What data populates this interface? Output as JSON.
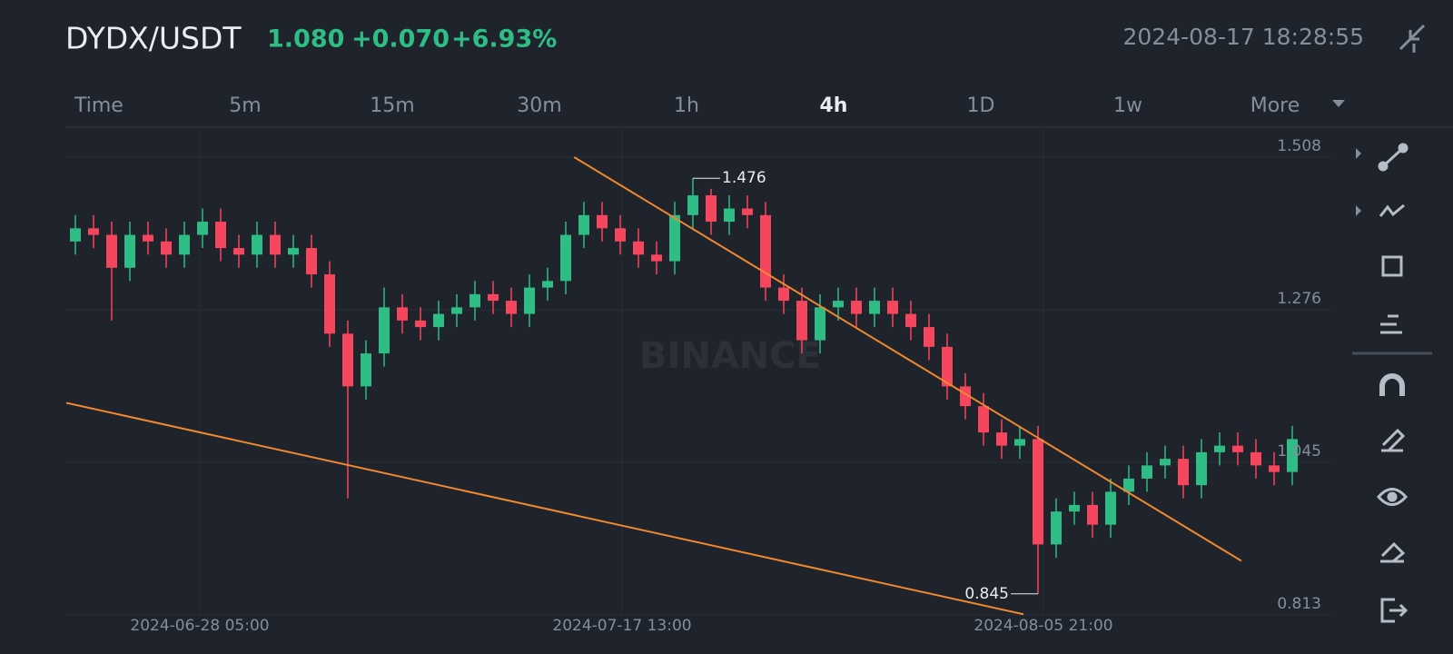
{
  "header": {
    "symbol": "DYDX/USDT",
    "price": "1.080",
    "change": "+0.070",
    "change_pct": "+6.93%",
    "time": "2024-08-17 18:28:55"
  },
  "timeframes": {
    "items": [
      "Time",
      "5m",
      "15m",
      "30m",
      "1h",
      "4h",
      "1D",
      "1w",
      "More"
    ],
    "active_index": 5
  },
  "chart_data": {
    "type": "candlestick",
    "watermark": "BINANCE",
    "up_color": "#2ebd85",
    "down_color": "#f6465d",
    "line_color": "#f0882f",
    "xlim": [
      0,
      68
    ],
    "ylim": [
      0.813,
      1.508
    ],
    "yticks": [
      1.508,
      1.276,
      1.045,
      0.813
    ],
    "xticks": [
      {
        "value": 7.35,
        "label": "2024-06-28 05:00"
      },
      {
        "value": 30.6,
        "label": "2024-07-17 13:00"
      },
      {
        "value": 53.8,
        "label": "2024-08-05 21:00"
      }
    ],
    "open": [
      1.38,
      1.4,
      1.39,
      1.34,
      1.39,
      1.38,
      1.36,
      1.39,
      1.41,
      1.37,
      1.36,
      1.39,
      1.36,
      1.37,
      1.33,
      1.24,
      1.16,
      1.21,
      1.28,
      1.26,
      1.25,
      1.27,
      1.28,
      1.3,
      1.29,
      1.27,
      1.31,
      1.32,
      1.39,
      1.42,
      1.4,
      1.38,
      1.36,
      1.35,
      1.42,
      1.45,
      1.41,
      1.43,
      1.42,
      1.31,
      1.29,
      1.23,
      1.28,
      1.29,
      1.27,
      1.29,
      1.27,
      1.25,
      1.22,
      1.16,
      1.13,
      1.09,
      1.07,
      1.08,
      0.92,
      0.97,
      0.98,
      0.95,
      1.0,
      1.02,
      1.04,
      1.05,
      1.01,
      1.06,
      1.07,
      1.06,
      1.04,
      1.03
    ],
    "high": [
      1.42,
      1.42,
      1.41,
      1.41,
      1.41,
      1.4,
      1.41,
      1.43,
      1.43,
      1.39,
      1.41,
      1.41,
      1.39,
      1.39,
      1.35,
      1.26,
      1.23,
      1.31,
      1.3,
      1.28,
      1.29,
      1.3,
      1.32,
      1.32,
      1.31,
      1.33,
      1.34,
      1.41,
      1.44,
      1.44,
      1.42,
      1.4,
      1.38,
      1.44,
      1.476,
      1.46,
      1.45,
      1.45,
      1.44,
      1.33,
      1.31,
      1.3,
      1.31,
      1.31,
      1.31,
      1.31,
      1.29,
      1.27,
      1.24,
      1.18,
      1.15,
      1.11,
      1.1,
      1.1,
      0.99,
      1.0,
      1.0,
      1.02,
      1.04,
      1.06,
      1.07,
      1.07,
      1.08,
      1.09,
      1.09,
      1.08,
      1.06,
      1.1
    ],
    "low": [
      1.36,
      1.37,
      1.26,
      1.32,
      1.36,
      1.34,
      1.34,
      1.37,
      1.35,
      1.34,
      1.34,
      1.34,
      1.34,
      1.31,
      1.22,
      0.99,
      1.14,
      1.19,
      1.24,
      1.23,
      1.23,
      1.25,
      1.26,
      1.27,
      1.25,
      1.25,
      1.29,
      1.3,
      1.37,
      1.38,
      1.36,
      1.34,
      1.33,
      1.33,
      1.4,
      1.39,
      1.39,
      1.4,
      1.29,
      1.27,
      1.21,
      1.21,
      1.26,
      1.25,
      1.25,
      1.25,
      1.23,
      1.2,
      1.14,
      1.11,
      1.07,
      1.05,
      1.05,
      0.845,
      0.9,
      0.95,
      0.93,
      0.93,
      0.98,
      1.0,
      1.02,
      0.99,
      0.99,
      1.04,
      1.04,
      1.02,
      1.01,
      1.01
    ],
    "close": [
      1.4,
      1.39,
      1.34,
      1.39,
      1.38,
      1.36,
      1.39,
      1.41,
      1.37,
      1.36,
      1.39,
      1.36,
      1.37,
      1.33,
      1.24,
      1.16,
      1.21,
      1.28,
      1.26,
      1.25,
      1.27,
      1.28,
      1.3,
      1.29,
      1.27,
      1.31,
      1.32,
      1.39,
      1.42,
      1.4,
      1.38,
      1.36,
      1.35,
      1.42,
      1.45,
      1.41,
      1.43,
      1.42,
      1.31,
      1.29,
      1.23,
      1.28,
      1.29,
      1.27,
      1.29,
      1.27,
      1.25,
      1.22,
      1.16,
      1.13,
      1.09,
      1.07,
      1.08,
      0.92,
      0.97,
      0.98,
      0.95,
      1.0,
      1.02,
      1.04,
      1.05,
      1.01,
      1.06,
      1.07,
      1.06,
      1.04,
      1.03,
      1.08
    ],
    "trendlines": [
      {
        "x": [
          27.96,
          64.7
        ],
        "y": [
          1.508,
          0.895
        ]
      },
      {
        "x": [
          0,
          52.7
        ],
        "y": [
          1.135,
          0.814
        ]
      }
    ],
    "high_mark_index": 34,
    "low_mark_index": 53
  }
}
